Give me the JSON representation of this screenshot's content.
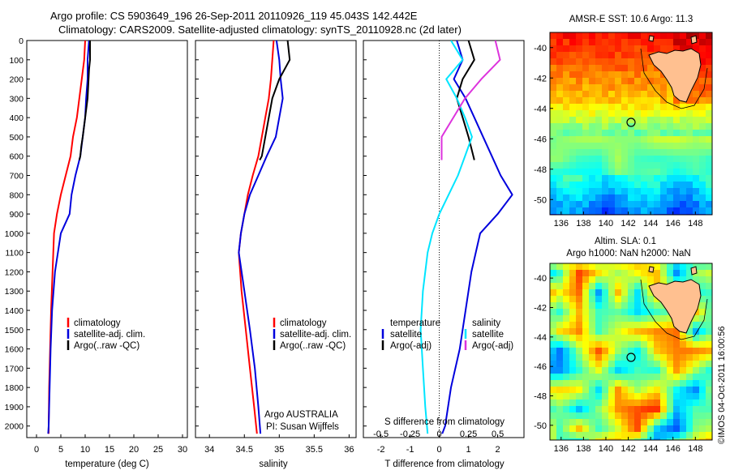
{
  "header": {
    "line1": "Argo profile: CS 5903649_196 26-Sep-2011 20110926_119 45.043S 142.442E",
    "line2": "Climatology: CARS2009. Satellite-adjusted climatology: synTS_20110928.nc (2d later)"
  },
  "colors": {
    "climatology": "#ff0000",
    "satellite": "#0000dd",
    "argo": "#000000",
    "cyan": "#00e5ff",
    "magenta": "#dd33dd"
  },
  "chart_data": [
    {
      "type": "line",
      "id": "temperature",
      "xlabel": "temperature (deg C)",
      "ylabel": "",
      "xlim": [
        -2,
        31
      ],
      "ylim": [
        2060,
        0
      ],
      "xticks": [
        "0",
        "5",
        "10",
        "15",
        "20",
        "25",
        "30"
      ],
      "xtick_values": [
        0,
        5,
        10,
        15,
        20,
        25,
        30
      ],
      "yticks": [
        "0",
        "100",
        "200",
        "300",
        "400",
        "500",
        "600",
        "700",
        "800",
        "900",
        "1000",
        "1100",
        "1200",
        "1300",
        "1400",
        "1500",
        "1600",
        "1700",
        "1800",
        "1900",
        "2000"
      ],
      "ytick_values": [
        0,
        100,
        200,
        300,
        400,
        500,
        600,
        700,
        800,
        900,
        1000,
        1100,
        1200,
        1300,
        1400,
        1500,
        1600,
        1700,
        1800,
        1900,
        2000
      ],
      "legend": [
        "climatology",
        "satellite-adj. clim.",
        "Argo(..raw -QC)"
      ],
      "series": [
        {
          "name": "climatology",
          "color": "#ff0000",
          "x": [
            10.0,
            9.8,
            9.3,
            8.8,
            8.3,
            7.5,
            7.0,
            6.0,
            5.0,
            4.2,
            3.6,
            3.3,
            3.0,
            2.8,
            2.6,
            2.5,
            2.5
          ],
          "y": [
            0,
            100,
            200,
            300,
            400,
            500,
            600,
            700,
            800,
            900,
            1000,
            1200,
            1400,
            1600,
            1800,
            2000,
            2040
          ]
        },
        {
          "name": "satellite-adj. clim.",
          "color": "#0000dd",
          "x": [
            10.8,
            10.5,
            10.5,
            10.2,
            10.0,
            9.5,
            9.0,
            8.0,
            7.2,
            6.8,
            5.0,
            3.8,
            3.2,
            2.9,
            2.7,
            2.5,
            2.4
          ],
          "y": [
            0,
            100,
            200,
            300,
            400,
            500,
            600,
            700,
            800,
            900,
            1000,
            1200,
            1400,
            1600,
            1800,
            2000,
            2040
          ]
        },
        {
          "name": "Argo(..raw -QC)",
          "color": "#000000",
          "x": [
            11.0,
            11.0,
            10.8,
            10.7,
            10.5,
            10.0,
            9.5,
            9.2,
            9.0,
            8.8
          ],
          "y": [
            0,
            100,
            150,
            200,
            300,
            400,
            500,
            550,
            600,
            620
          ]
        }
      ]
    },
    {
      "type": "line",
      "id": "salinity",
      "xlabel": "salinity",
      "ylabel": "",
      "xlim": [
        33.8,
        36.1
      ],
      "ylim": [
        2060,
        0
      ],
      "xticks": [
        "34",
        "34.5",
        "35",
        "35.5",
        "36"
      ],
      "xtick_values": [
        34,
        34.5,
        35,
        35.5,
        36
      ],
      "legend": [
        "climatology",
        "satellite-adj. clim.",
        "Argo(..raw -QC)"
      ],
      "annotation": [
        "Argo AUSTRALIA",
        "PI: Susan Wijffels"
      ],
      "series": [
        {
          "name": "climatology",
          "color": "#ff0000",
          "x": [
            34.92,
            34.9,
            34.88,
            34.85,
            34.8,
            34.75,
            34.7,
            34.62,
            34.55,
            34.5,
            34.45,
            34.42,
            34.46,
            34.52,
            34.58,
            34.64,
            34.68
          ],
          "y": [
            0,
            100,
            200,
            300,
            400,
            500,
            600,
            700,
            800,
            900,
            1000,
            1100,
            1300,
            1500,
            1700,
            1900,
            2040
          ]
        },
        {
          "name": "satellite-adj. clim.",
          "color": "#0000dd",
          "x": [
            34.96,
            35.0,
            35.02,
            35.05,
            35.0,
            34.95,
            34.82,
            34.7,
            34.58,
            34.5,
            34.45,
            34.42,
            34.5,
            34.58,
            34.65,
            34.7,
            34.73
          ],
          "y": [
            0,
            100,
            200,
            300,
            400,
            500,
            600,
            700,
            800,
            900,
            1000,
            1100,
            1300,
            1500,
            1700,
            1900,
            2040
          ]
        },
        {
          "name": "Argo(..raw -QC)",
          "color": "#000000",
          "x": [
            35.12,
            35.15,
            35.0,
            34.9,
            34.85,
            34.8,
            34.75,
            34.72
          ],
          "y": [
            0,
            100,
            200,
            300,
            400,
            500,
            600,
            620
          ]
        }
      ]
    },
    {
      "type": "line",
      "id": "difference",
      "xlabel": "T difference from climatology",
      "xlabel_top": "S difference from climatology",
      "ylabel": "",
      "xlim": [
        -2.6,
        2.9
      ],
      "xlim_top": [
        -0.65,
        0.725
      ],
      "ylim": [
        2060,
        0
      ],
      "xticks": [
        "-2",
        "-1",
        "0",
        "1",
        "2"
      ],
      "xtick_values": [
        -2,
        -1,
        0,
        1,
        2
      ],
      "xticks_top": [
        "-0.5",
        "-0.25",
        "0",
        "0.25",
        "0.5"
      ],
      "xtick_values_top": [
        -0.5,
        -0.25,
        0,
        0.25,
        0.5
      ],
      "legend_left_title": "temperature",
      "legend_left": [
        "satellite",
        "Argo(-adj)"
      ],
      "legend_right_title": "salinity",
      "legend_right": [
        "satellite",
        "Argo(-adj)"
      ],
      "series": [
        {
          "name": "temperature satellite",
          "color": "#0000dd",
          "x": [
            0.6,
            0.8,
            0.5,
            0.9,
            1.2,
            1.5,
            1.8,
            2.1,
            2.5,
            2.0,
            1.4,
            1.1,
            0.9,
            0.7,
            0.4,
            0.2,
            0.1
          ],
          "y": [
            0,
            100,
            200,
            300,
            400,
            500,
            600,
            700,
            800,
            900,
            1000,
            1200,
            1400,
            1600,
            1800,
            2000,
            2040
          ]
        },
        {
          "name": "temperature Argo(-adj)",
          "color": "#000000",
          "x": [
            1.0,
            1.2,
            0.8,
            0.6,
            0.8,
            1.0,
            1.2
          ],
          "y": [
            0,
            100,
            200,
            300,
            400,
            500,
            620
          ]
        },
        {
          "name": "salinity satellite",
          "color": "#00e5ff",
          "x": [
            0.1,
            0.2,
            0.06,
            0.15,
            0.22,
            0.28,
            0.22,
            0.16,
            0.08,
            0.0,
            -0.06,
            -0.1,
            -0.14,
            -0.16,
            -0.14,
            -0.12,
            -0.1
          ],
          "y": [
            0,
            100,
            200,
            300,
            400,
            500,
            600,
            700,
            800,
            900,
            1000,
            1100,
            1300,
            1500,
            1700,
            1900,
            2040
          ]
        },
        {
          "name": "salinity Argo(-adj)",
          "color": "#dd33dd",
          "x": [
            0.48,
            0.52,
            0.36,
            0.22,
            0.12,
            0.02,
            0.02
          ],
          "y": [
            0,
            100,
            200,
            300,
            400,
            500,
            620
          ]
        }
      ]
    },
    {
      "type": "heatmap",
      "id": "sst-map",
      "title": "AMSR-E SST: 10.6  Argo: 11.3",
      "xlim": [
        135,
        149.5
      ],
      "ylim": [
        -51,
        -39
      ],
      "xticks": [
        "136",
        "138",
        "140",
        "142",
        "144",
        "146",
        "148"
      ],
      "xtick_values": [
        136,
        138,
        140,
        142,
        144,
        146,
        148
      ],
      "yticks": [
        "-40",
        "-42",
        "-44",
        "-46",
        "-48",
        "-50"
      ],
      "ytick_values": [
        -40,
        -42,
        -44,
        -46,
        -48,
        -50
      ],
      "marker": {
        "lon": 142.44,
        "lat": -45.04
      }
    },
    {
      "type": "heatmap",
      "id": "sla-map",
      "title_line1": "Altim. SLA: 0.1",
      "title_line2": "Argo h1000: NaN h2000: NaN",
      "xlim": [
        135,
        149.5
      ],
      "ylim": [
        -51,
        -39
      ],
      "xticks": [
        "136",
        "138",
        "140",
        "142",
        "144",
        "146",
        "148"
      ],
      "xtick_values": [
        136,
        138,
        140,
        142,
        144,
        146,
        148
      ],
      "yticks": [
        "-40",
        "-42",
        "-44",
        "-46",
        "-48",
        "-50"
      ],
      "ytick_values": [
        -40,
        -42,
        -44,
        -46,
        -48,
        -50
      ],
      "marker": {
        "lon": 142.44,
        "lat": -45.04
      }
    }
  ],
  "watermark": "©IMOS 04-Oct-2011 16:00:56"
}
